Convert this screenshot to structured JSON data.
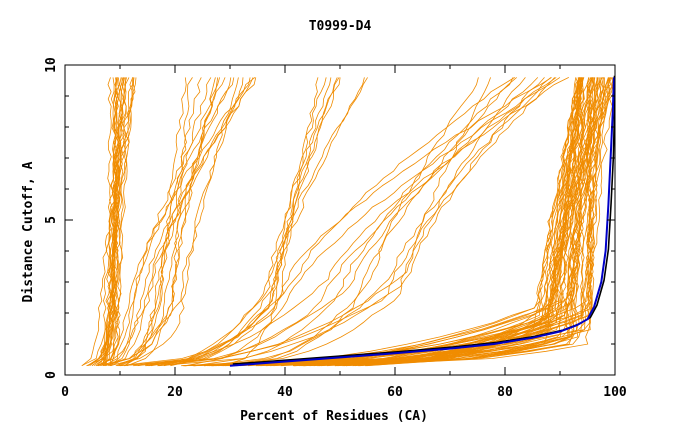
{
  "chart_data": {
    "type": "line",
    "title": "T0999-D4",
    "xlabel": "Percent of Residues (CA)",
    "ylabel": "Distance Cutoff, A",
    "xlim": [
      0,
      100
    ],
    "ylim": [
      0,
      10
    ],
    "x_ticks": [
      0,
      20,
      40,
      60,
      80,
      100
    ],
    "x_tick_labels": [
      "0",
      "20",
      "40",
      "60",
      "80",
      "100"
    ],
    "y_ticks": [
      0,
      5,
      10
    ],
    "y_tick_labels": [
      "0",
      "5",
      "10"
    ],
    "grid": false,
    "legend": "none",
    "colors": {
      "highlight": "#0000c8",
      "background_series": "#f08c00",
      "highlight_shadow": "#000000"
    },
    "highlight_series": {
      "x": [
        30,
        45,
        60,
        70,
        78,
        85,
        90,
        93,
        95,
        96.2,
        97.5,
        98.3,
        98.8,
        99.2,
        99.6,
        99.8
      ],
      "y": [
        0.3,
        0.5,
        0.7,
        0.85,
        1.0,
        1.2,
        1.4,
        1.6,
        1.8,
        2.2,
        3.0,
        4.0,
        5.5,
        7.0,
        8.5,
        9.6
      ]
    },
    "background_groups": [
      {
        "name_hint": "steep-left",
        "count": 22,
        "x0": [
          3,
          8
        ],
        "xk": [
          6,
          10
        ],
        "x_end": [
          8,
          13
        ],
        "y_bend": [
          1.0,
          2.5
        ]
      },
      {
        "name_hint": "mid-diagonal",
        "count": 16,
        "x0": [
          5,
          12
        ],
        "xk": [
          12,
          22
        ],
        "x_end": [
          22,
          35
        ],
        "y_bend": [
          1.5,
          3.0
        ]
      },
      {
        "name_hint": "mid-plateau",
        "count": 8,
        "x0": [
          8,
          20
        ],
        "xk": [
          36,
          40
        ],
        "x_end": [
          44,
          56
        ],
        "y_bend": [
          2.0,
          3.0
        ]
      },
      {
        "name_hint": "long-diagonal",
        "count": 14,
        "x0": [
          10,
          30
        ],
        "xk": [
          40,
          65
        ],
        "x_end": [
          75,
          92
        ],
        "y_bend": [
          2.0,
          3.5
        ]
      },
      {
        "name_hint": "right-knee",
        "count": 60,
        "x0": [
          20,
          55
        ],
        "xk": [
          85,
          96
        ],
        "x_end": [
          93,
          100
        ],
        "y_bend": [
          1.0,
          2.5
        ]
      }
    ]
  }
}
